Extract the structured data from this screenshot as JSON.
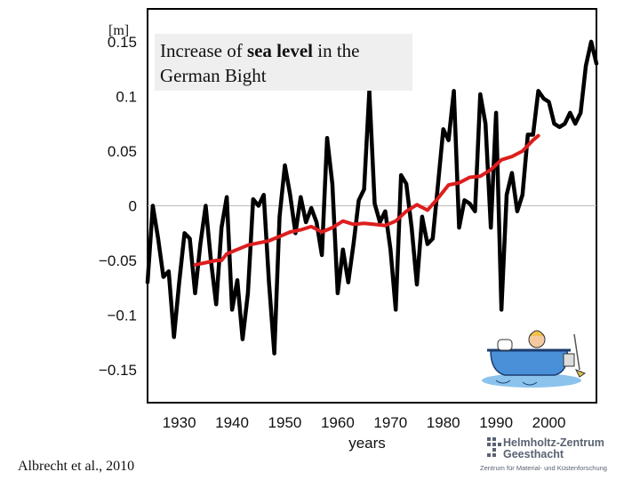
{
  "chart_data": {
    "type": "line",
    "title": "",
    "xlabel": "years",
    "ylabel": "",
    "xlim": [
      1924,
      2009
    ],
    "ylim": [
      -0.18,
      0.18
    ],
    "x_ticks": [
      1930,
      1940,
      1950,
      1960,
      1970,
      1980,
      1990,
      2000
    ],
    "x_tick_labels": [
      "1930",
      "1940",
      "1950",
      "1960",
      "1970",
      "1980",
      "1990",
      "2000"
    ],
    "y_ticks": [
      0.15,
      0.1,
      0.05,
      0,
      -0.05,
      -0.1,
      -0.15
    ],
    "y_tick_labels": [
      "0.15",
      "0.1",
      "0.05",
      "0",
      "−0.05",
      "−0.1",
      "−0.15"
    ],
    "zero_line": true,
    "series": [
      {
        "color": "#000000",
        "x": [
          1924,
          1925,
          1926,
          1927,
          1928,
          1929,
          1930,
          1931,
          1932,
          1933,
          1934,
          1935,
          1936,
          1937,
          1938,
          1939,
          1940,
          1941,
          1942,
          1943,
          1944,
          1945,
          1946,
          1947,
          1948,
          1949,
          1950,
          1951,
          1952,
          1953,
          1954,
          1955,
          1956,
          1957,
          1958,
          1959,
          1960,
          1961,
          1962,
          1963,
          1964,
          1965,
          1966,
          1967,
          1968,
          1969,
          1970,
          1971,
          1972,
          1973,
          1974,
          1975,
          1976,
          1977,
          1978,
          1979,
          1980,
          1981,
          1982,
          1983,
          1984,
          1985,
          1986,
          1987,
          1988,
          1989,
          1990,
          1991,
          1992,
          1993,
          1994,
          1995,
          1996,
          1997,
          1998,
          1999,
          2000,
          2001,
          2002,
          2003,
          2004,
          2005,
          2006,
          2007,
          2008,
          2009
        ],
        "y": [
          -0.07,
          0,
          -0.03,
          -0.065,
          -0.06,
          -0.12,
          -0.07,
          -0.025,
          -0.03,
          -0.08,
          -0.035,
          0,
          -0.05,
          -0.09,
          -0.02,
          0.008,
          -0.095,
          -0.068,
          -0.122,
          -0.08,
          0.006,
          0,
          0.01,
          -0.07,
          -0.135,
          -0.01,
          0.037,
          0.01,
          -0.025,
          0.008,
          -0.015,
          -0.002,
          -0.015,
          -0.045,
          0.062,
          0.02,
          -0.08,
          -0.04,
          -0.07,
          -0.035,
          0.005,
          0.015,
          0.105,
          0.002,
          -0.015,
          -0.005,
          -0.04,
          -0.095,
          0.028,
          0.02,
          -0.02,
          -0.072,
          -0.01,
          -0.035,
          -0.03,
          0.02,
          0.07,
          0.06,
          0.105,
          -0.02,
          0.005,
          0.002,
          -0.005,
          0.102,
          0.075,
          -0.02,
          0.085,
          -0.095,
          0.01,
          0.03,
          -0.005,
          0.01,
          0.065,
          0.065,
          0.105,
          0.098,
          0.095,
          0.075,
          0.072,
          0.075,
          0.085,
          0.075,
          0.085,
          0.128,
          0.15,
          0.13
        ]
      },
      {
        "color": "#dd1e1e",
        "x": [
          1933,
          1935,
          1937,
          1938,
          1939,
          1941,
          1943,
          1945,
          1947,
          1949,
          1951,
          1953,
          1955,
          1957,
          1959,
          1961,
          1963,
          1965,
          1967,
          1969,
          1971,
          1973,
          1975,
          1977,
          1979,
          1981,
          1983,
          1985,
          1987,
          1989,
          1991,
          1993,
          1995,
          1997,
          1998
        ],
        "y": [
          -0.054,
          -0.052,
          -0.05,
          -0.05,
          -0.044,
          -0.04,
          -0.036,
          -0.034,
          -0.032,
          -0.028,
          -0.024,
          -0.022,
          -0.019,
          -0.024,
          -0.02,
          -0.014,
          -0.017,
          -0.016,
          -0.017,
          -0.018,
          -0.014,
          -0.005,
          0.001,
          -0.004,
          0.007,
          0.019,
          0.021,
          0.026,
          0.027,
          0.033,
          0.042,
          0.045,
          0.05,
          0.06,
          0.064
        ]
      }
    ]
  },
  "labels": {
    "unit": "[m]",
    "title_prefix": "Increase of ",
    "title_bold": "sea level",
    "title_suffix": " in the German Bight",
    "citation": "Albrecht et al., 2010"
  },
  "logo": {
    "line1": "Helmholtz-Zentrum",
    "line2": "Geesthacht",
    "sub": "Zentrum für Material- und Küstenforschung",
    "color": "#5a6272"
  }
}
